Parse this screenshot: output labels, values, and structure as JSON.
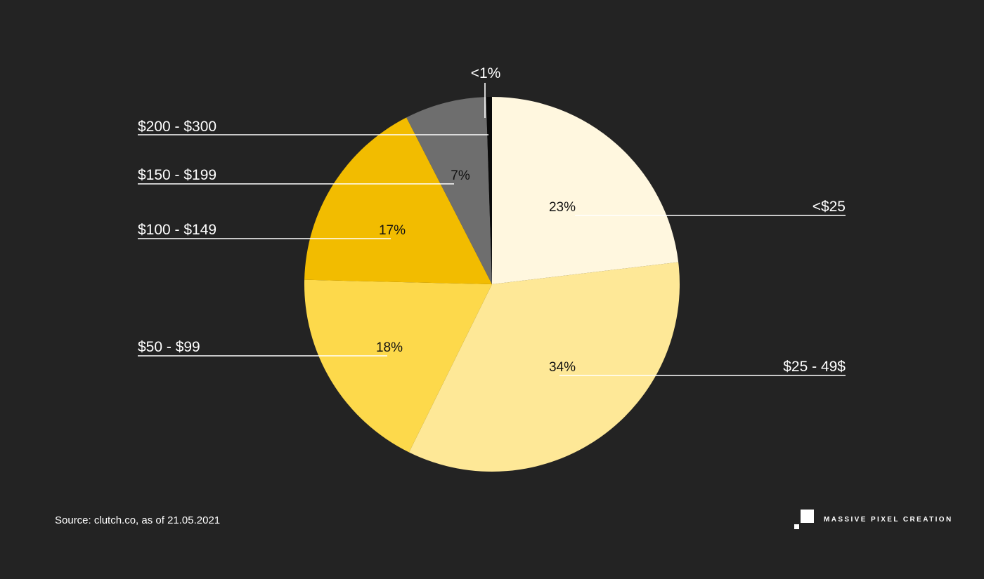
{
  "chart_data": {
    "type": "pie",
    "start_angle_deg": 0,
    "direction": "clockwise",
    "slices": [
      {
        "label": "<$25",
        "percent_label": "23%",
        "value": 23,
        "color": "#FFF7DF"
      },
      {
        "label": "$25 - 49$",
        "percent_label": "34%",
        "value": 34,
        "color": "#FEE897"
      },
      {
        "label": "$50 - $99",
        "percent_label": "18%",
        "value": 18,
        "color": "#FDD94B"
      },
      {
        "label": "$100 - $149",
        "percent_label": "17%",
        "value": 17,
        "color": "#F2BC00"
      },
      {
        "label": "$150 - $199",
        "percent_label": "7%",
        "value": 7,
        "color": "#6E6E6E"
      },
      {
        "label": "$200 - $300",
        "percent_label": "",
        "value": 0.5,
        "color": "#0A0A0A"
      }
    ],
    "annotations": [
      "<1%"
    ]
  },
  "source": "Source: clutch.co, as of 21.05.2021",
  "brand": "MASSIVE PIXEL CREATION",
  "background": "#232323"
}
